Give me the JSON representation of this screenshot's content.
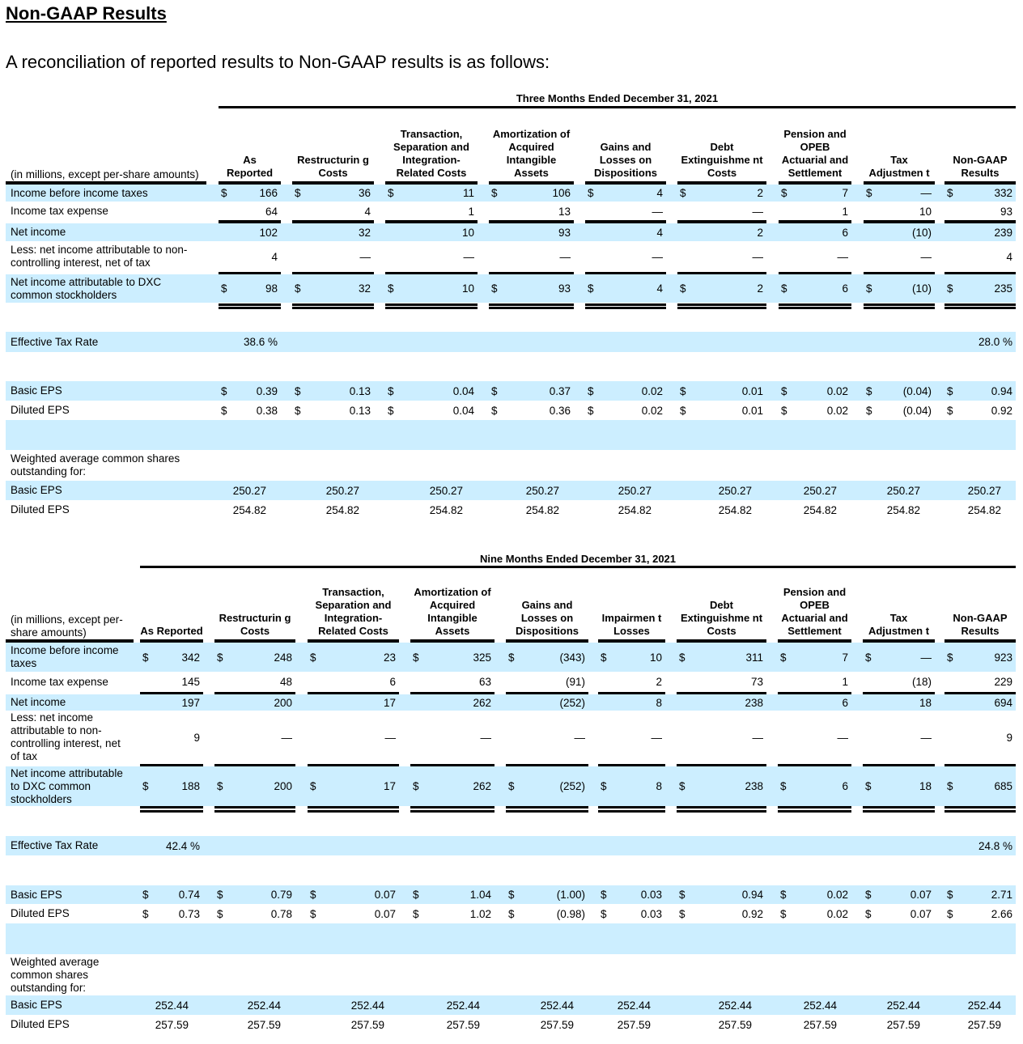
{
  "page": {
    "title": "Non-GAAP Results",
    "intro": "A reconciliation of reported results to Non-GAAP results is as follows:"
  },
  "colors": {
    "row_highlight": "#cceeff"
  },
  "tables": [
    {
      "period": "Three Months Ended December 31, 2021",
      "corner": "(in millions, except per-share amounts)",
      "columns": [
        "As Reported",
        "Restructurin g Costs",
        "Transaction, Separation and Integration-Related Costs",
        "Amortization of Acquired Intangible Assets",
        "Gains and Losses on Dispositions",
        "Debt Extinguishme nt Costs",
        "Pension and OPEB Actuarial and Settlement",
        "Tax Adjustmen t",
        "Non-GAAP Results"
      ],
      "rows": [
        {
          "label": "Income before income taxes",
          "dollar": true,
          "values": [
            "166",
            "36",
            "11",
            "106",
            "4",
            "2",
            "7",
            "—",
            "332"
          ]
        },
        {
          "label": "Income tax expense",
          "dollar": false,
          "values": [
            "64",
            "4",
            "1",
            "13",
            "—",
            "—",
            "1",
            "10",
            "93"
          ]
        },
        {
          "label": "Net income",
          "dollar": false,
          "values": [
            "102",
            "32",
            "10",
            "93",
            "4",
            "2",
            "6",
            "(10)",
            "239"
          ]
        },
        {
          "label": "Less: net income attributable to non-controlling interest, net of tax",
          "dollar": false,
          "values": [
            "4",
            "—",
            "—",
            "—",
            "—",
            "—",
            "—",
            "—",
            "4"
          ]
        },
        {
          "label": "Net income attributable to DXC common stockholders",
          "dollar": true,
          "values": [
            "98",
            "32",
            "10",
            "93",
            "4",
            "2",
            "6",
            "(10)",
            "235"
          ]
        },
        {
          "label": "",
          "dollar": false,
          "values": []
        },
        {
          "label": "Effective Tax Rate",
          "dollar": false,
          "values": [
            "38.6 %",
            "",
            "",
            "",
            "",
            "",
            "",
            "",
            "28.0 %"
          ]
        },
        {
          "label": "",
          "dollar": false,
          "values": []
        },
        {
          "label": "Basic EPS",
          "dollar": true,
          "values": [
            "0.39",
            "0.13",
            "0.04",
            "0.37",
            "0.02",
            "0.01",
            "0.02",
            "(0.04)",
            "0.94"
          ]
        },
        {
          "label": "Diluted EPS",
          "dollar": true,
          "values": [
            "0.38",
            "0.13",
            "0.04",
            "0.36",
            "0.02",
            "0.01",
            "0.02",
            "(0.04)",
            "0.92"
          ]
        },
        {
          "label": "",
          "dollar": false,
          "values": []
        },
        {
          "label": "Weighted average common shares outstanding for:",
          "dollar": false,
          "values": []
        },
        {
          "label": "Basic EPS",
          "dollar": false,
          "values": [
            "250.27",
            "250.27",
            "250.27",
            "250.27",
            "250.27",
            "250.27",
            "250.27",
            "250.27",
            "250.27"
          ]
        },
        {
          "label": "Diluted EPS",
          "dollar": false,
          "values": [
            "254.82",
            "254.82",
            "254.82",
            "254.82",
            "254.82",
            "254.82",
            "254.82",
            "254.82",
            "254.82"
          ]
        }
      ]
    },
    {
      "period": "Nine Months Ended December 31, 2021",
      "corner": "(in millions, except per-share amounts)",
      "columns": [
        "As Reported",
        "Restructurin g Costs",
        "Transaction, Separation and Integration-Related Costs",
        "Amortization of Acquired Intangible Assets",
        "Gains and Losses on Dispositions",
        "Impairmen t Losses",
        "Debt Extinguishme nt Costs",
        "Pension and OPEB Actuarial and Settlement",
        "Tax Adjustmen t",
        "Non-GAAP Results"
      ],
      "rows": [
        {
          "label": "Income before income taxes",
          "dollar": true,
          "values": [
            "342",
            "248",
            "23",
            "325",
            "(343)",
            "10",
            "311",
            "7",
            "—",
            "923"
          ]
        },
        {
          "label": "Income tax expense",
          "dollar": false,
          "values": [
            "145",
            "48",
            "6",
            "63",
            "(91)",
            "2",
            "73",
            "1",
            "(18)",
            "229"
          ]
        },
        {
          "label": "Net income",
          "dollar": false,
          "values": [
            "197",
            "200",
            "17",
            "262",
            "(252)",
            "8",
            "238",
            "6",
            "18",
            "694"
          ]
        },
        {
          "label": "Less: net income attributable to non-controlling interest, net of tax",
          "dollar": false,
          "values": [
            "9",
            "—",
            "—",
            "—",
            "—",
            "—",
            "—",
            "—",
            "—",
            "9"
          ]
        },
        {
          "label": "Net income attributable to DXC common stockholders",
          "dollar": true,
          "values": [
            "188",
            "200",
            "17",
            "262",
            "(252)",
            "8",
            "238",
            "6",
            "18",
            "685"
          ]
        },
        {
          "label": "",
          "dollar": false,
          "values": []
        },
        {
          "label": "Effective Tax Rate",
          "dollar": false,
          "values": [
            "42.4 %",
            "",
            "",
            "",
            "",
            "",
            "",
            "",
            "",
            "24.8 %"
          ]
        },
        {
          "label": "",
          "dollar": false,
          "values": []
        },
        {
          "label": "Basic EPS",
          "dollar": true,
          "values": [
            "0.74",
            "0.79",
            "0.07",
            "1.04",
            "(1.00)",
            "0.03",
            "0.94",
            "0.02",
            "0.07",
            "2.71"
          ]
        },
        {
          "label": "Diluted EPS",
          "dollar": true,
          "values": [
            "0.73",
            "0.78",
            "0.07",
            "1.02",
            "(0.98)",
            "0.03",
            "0.92",
            "0.02",
            "0.07",
            "2.66"
          ]
        },
        {
          "label": "",
          "dollar": false,
          "values": []
        },
        {
          "label": "Weighted average common shares outstanding for:",
          "dollar": false,
          "values": []
        },
        {
          "label": "Basic EPS",
          "dollar": false,
          "values": [
            "252.44",
            "252.44",
            "252.44",
            "252.44",
            "252.44",
            "252.44",
            "252.44",
            "252.44",
            "252.44",
            "252.44"
          ]
        },
        {
          "label": "Diluted EPS",
          "dollar": false,
          "values": [
            "257.59",
            "257.59",
            "257.59",
            "257.59",
            "257.59",
            "257.59",
            "257.59",
            "257.59",
            "257.59",
            "257.59"
          ]
        }
      ]
    }
  ]
}
